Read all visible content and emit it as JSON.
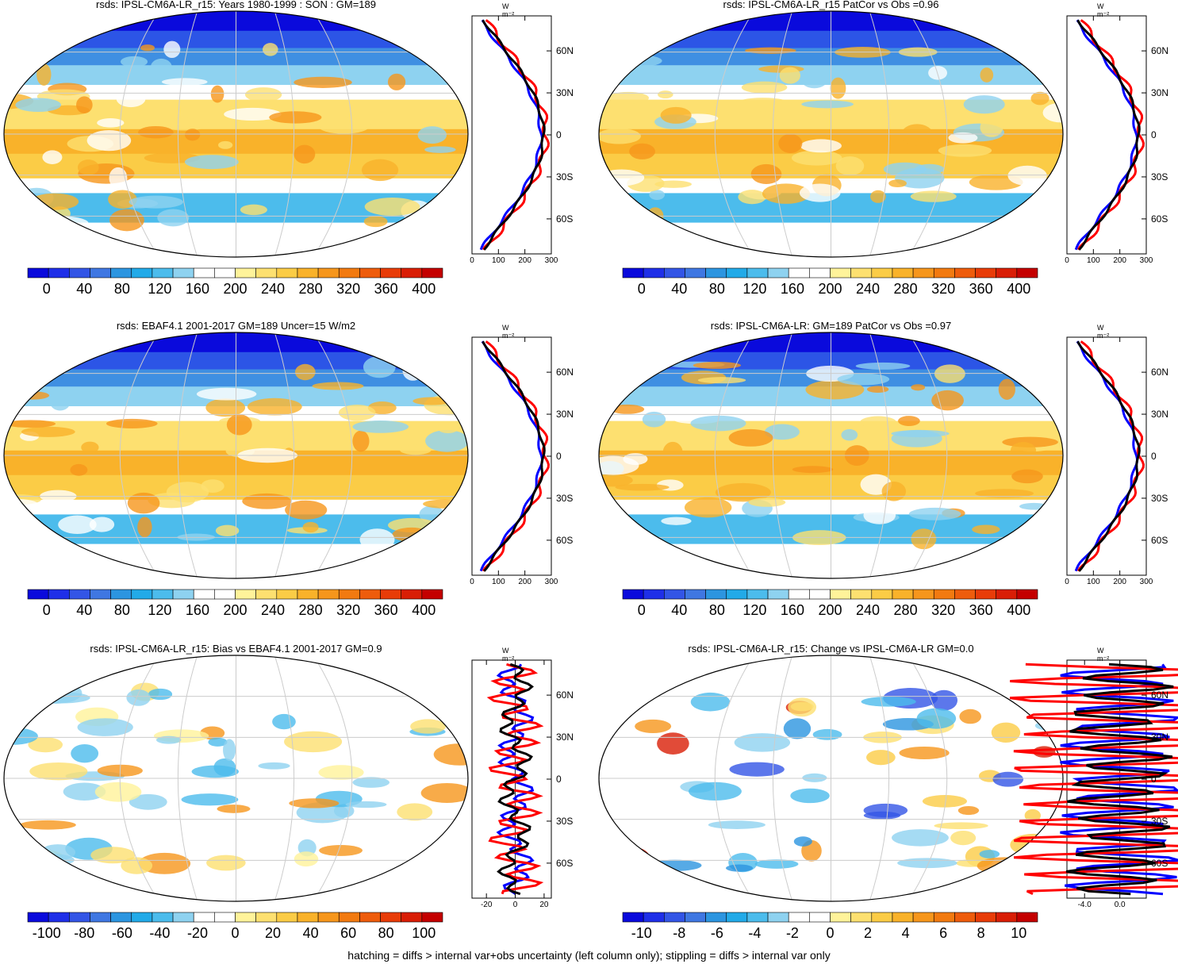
{
  "footer_note": "hatching = diffs > internal var+obs uncertainty (left column only); stippling = diffs > internal var only",
  "profile_unit": "W m⁻²",
  "colors": {
    "profile_blue": "#0000ff",
    "profile_red": "#ff0000",
    "profile_black": "#000000",
    "map_grid": "#cccccc",
    "map_white": "#ffffff"
  },
  "chart_data": [
    {
      "type": "heatmap",
      "title": "rsds: IPSL-CM6A-LR_r15: Years 1980-1999 : SON : GM=189",
      "colorbar": {
        "min": -20,
        "max": 420,
        "step": 20,
        "tick_labels": [
          "0",
          "40",
          "80",
          "120",
          "160",
          "200",
          "240",
          "280",
          "320",
          "360",
          "400"
        ]
      },
      "profile": {
        "lat_labels": [
          "60N",
          "30N",
          "0",
          "30S",
          "60S"
        ],
        "x_tick_labels": [
          "0",
          "100",
          "200",
          "300"
        ],
        "xlim": [
          0,
          300
        ]
      }
    },
    {
      "type": "heatmap",
      "title": "rsds: IPSL-CM6A-LR_r15 PatCor vs Obs =0.96",
      "colorbar": {
        "min": -20,
        "max": 420,
        "step": 20,
        "tick_labels": [
          "0",
          "40",
          "80",
          "120",
          "160",
          "200",
          "240",
          "280",
          "320",
          "360",
          "400"
        ]
      },
      "profile": {
        "lat_labels": [
          "60N",
          "30N",
          "0",
          "30S",
          "60S"
        ],
        "x_tick_labels": [
          "0",
          "100",
          "200",
          "300"
        ],
        "xlim": [
          0,
          300
        ]
      }
    },
    {
      "type": "heatmap",
      "title": "rsds: EBAF4.1 2001-2017 GM=189 Uncer=15 W/m2",
      "colorbar": {
        "min": -20,
        "max": 420,
        "step": 20,
        "tick_labels": [
          "0",
          "40",
          "80",
          "120",
          "160",
          "200",
          "240",
          "280",
          "320",
          "360",
          "400"
        ]
      },
      "profile": {
        "lat_labels": [
          "60N",
          "30N",
          "0",
          "30S",
          "60S"
        ],
        "x_tick_labels": [
          "0",
          "100",
          "200",
          "300"
        ],
        "xlim": [
          0,
          300
        ]
      }
    },
    {
      "type": "heatmap",
      "title": "rsds: IPSL-CM6A-LR: GM=189 PatCor vs Obs =0.97",
      "colorbar": {
        "min": -20,
        "max": 420,
        "step": 20,
        "tick_labels": [
          "0",
          "40",
          "80",
          "120",
          "160",
          "200",
          "240",
          "280",
          "320",
          "360",
          "400"
        ]
      },
      "profile": {
        "lat_labels": [
          "60N",
          "30N",
          "0",
          "30S",
          "60S"
        ],
        "x_tick_labels": [
          "0",
          "100",
          "200",
          "300"
        ],
        "xlim": [
          0,
          300
        ]
      }
    },
    {
      "type": "heatmap",
      "title": "rsds: IPSL-CM6A-LR_r15: Bias vs EBAF4.1 2001-2017  GM=0.9",
      "colorbar": {
        "min": -110,
        "max": 110,
        "step": 10,
        "tick_labels": [
          "-100",
          "-80",
          "-60",
          "-40",
          "-20",
          "0",
          "20",
          "40",
          "60",
          "80",
          "100"
        ]
      },
      "profile": {
        "lat_labels": [
          "60N",
          "30N",
          "0",
          "30S",
          "60S"
        ],
        "x_tick_labels": [
          "-20",
          "0",
          "20"
        ],
        "xlim": [
          -30,
          25
        ]
      }
    },
    {
      "type": "heatmap",
      "title": "rsds: IPSL-CM6A-LR_r15: Change vs IPSL-CM6A-LR GM=0.0",
      "colorbar": {
        "min": -11,
        "max": 11,
        "step": 1,
        "tick_labels": [
          "-10",
          "-8",
          "-6",
          "-4",
          "-2",
          "0",
          "2",
          "4",
          "6",
          "8",
          "10"
        ]
      },
      "profile": {
        "lat_labels": [
          "60N",
          "30N",
          "0",
          "30S",
          "60S"
        ],
        "x_tick_labels": [
          "-4.0",
          "0.0"
        ],
        "xlim": [
          -6,
          3
        ]
      }
    }
  ]
}
